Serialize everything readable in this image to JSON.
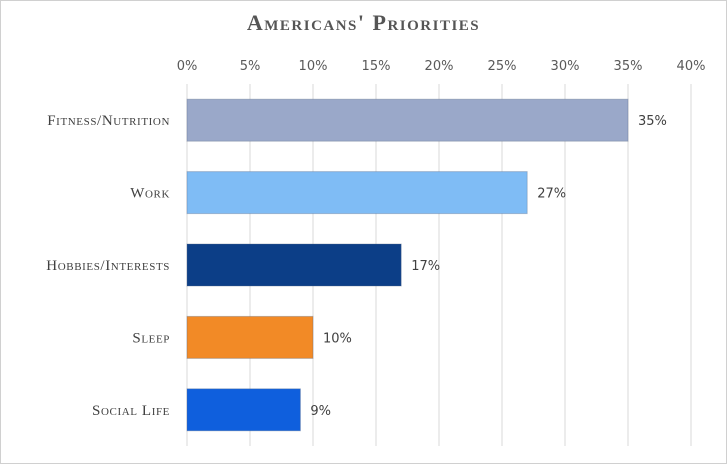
{
  "chart_data": {
    "type": "bar",
    "orientation": "horizontal",
    "title": "Americans' Priorities",
    "xlabel": "",
    "ylabel": "",
    "xlim": [
      0,
      40
    ],
    "x_ticks": [
      "0%",
      "5%",
      "10%",
      "15%",
      "20%",
      "25%",
      "30%",
      "35%",
      "40%"
    ],
    "x_axis_position": "top",
    "grid": true,
    "legend": "none",
    "categories": [
      "Fitness/Nutrition",
      "Work",
      "Hobbies/Interests",
      "Sleep",
      "Social Life"
    ],
    "values": [
      35,
      27,
      17,
      10,
      9
    ],
    "data_labels": [
      "35%",
      "27%",
      "17%",
      "10%",
      "9%"
    ],
    "colors": [
      "#9aa8c9",
      "#7fbcf5",
      "#0c3e87",
      "#f28a26",
      "#0f5fdd"
    ]
  }
}
